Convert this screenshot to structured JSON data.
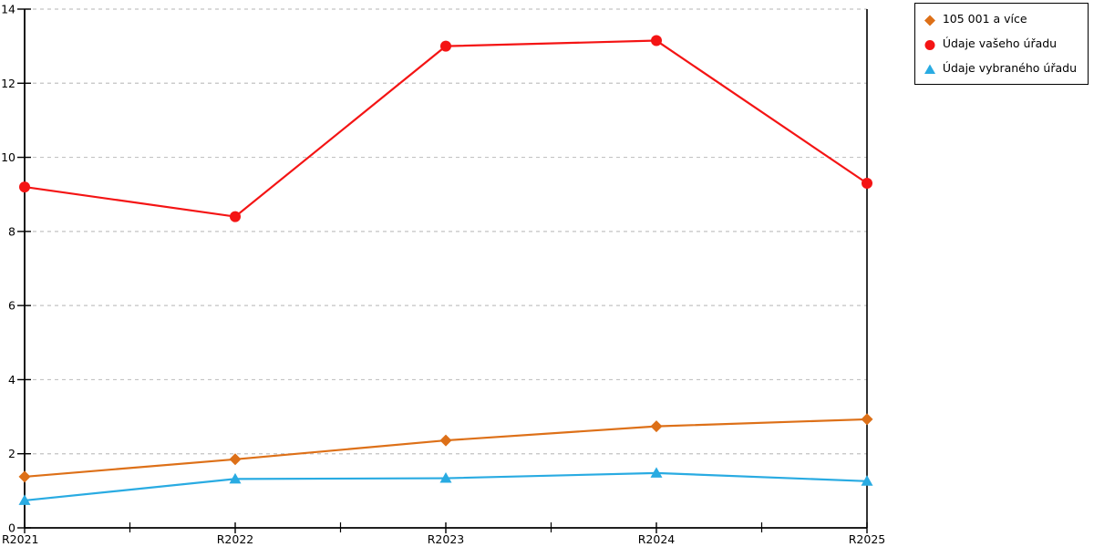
{
  "chart_data": {
    "type": "line",
    "title": "",
    "xlabel": "",
    "ylabel": "",
    "categories": [
      "R2021",
      "R2022",
      "R2023",
      "R2024",
      "R2025"
    ],
    "series": [
      {
        "name": "105 001 a více",
        "marker": "diamond",
        "color": "#dd7018",
        "values": [
          1.38,
          1.85,
          2.36,
          2.74,
          2.93
        ]
      },
      {
        "name": "Údaje vašeho úřadu",
        "marker": "circle",
        "color": "#f41414",
        "values": [
          9.2,
          8.4,
          13.0,
          13.15,
          9.3
        ]
      },
      {
        "name": "Údaje vybraného úřadu",
        "marker": "triangle",
        "color": "#29abe2",
        "values": [
          0.74,
          1.32,
          1.34,
          1.48,
          1.26
        ]
      }
    ],
    "ylim": [
      0,
      14
    ],
    "ytick_step": 2,
    "x_minor_ticks": true,
    "grid": "dashed-horizontal",
    "legend_position": "top-right",
    "colors": {
      "grid": "#c3c3c3",
      "axis": "#000000",
      "text": "#000000",
      "background": "#ffffff"
    }
  }
}
